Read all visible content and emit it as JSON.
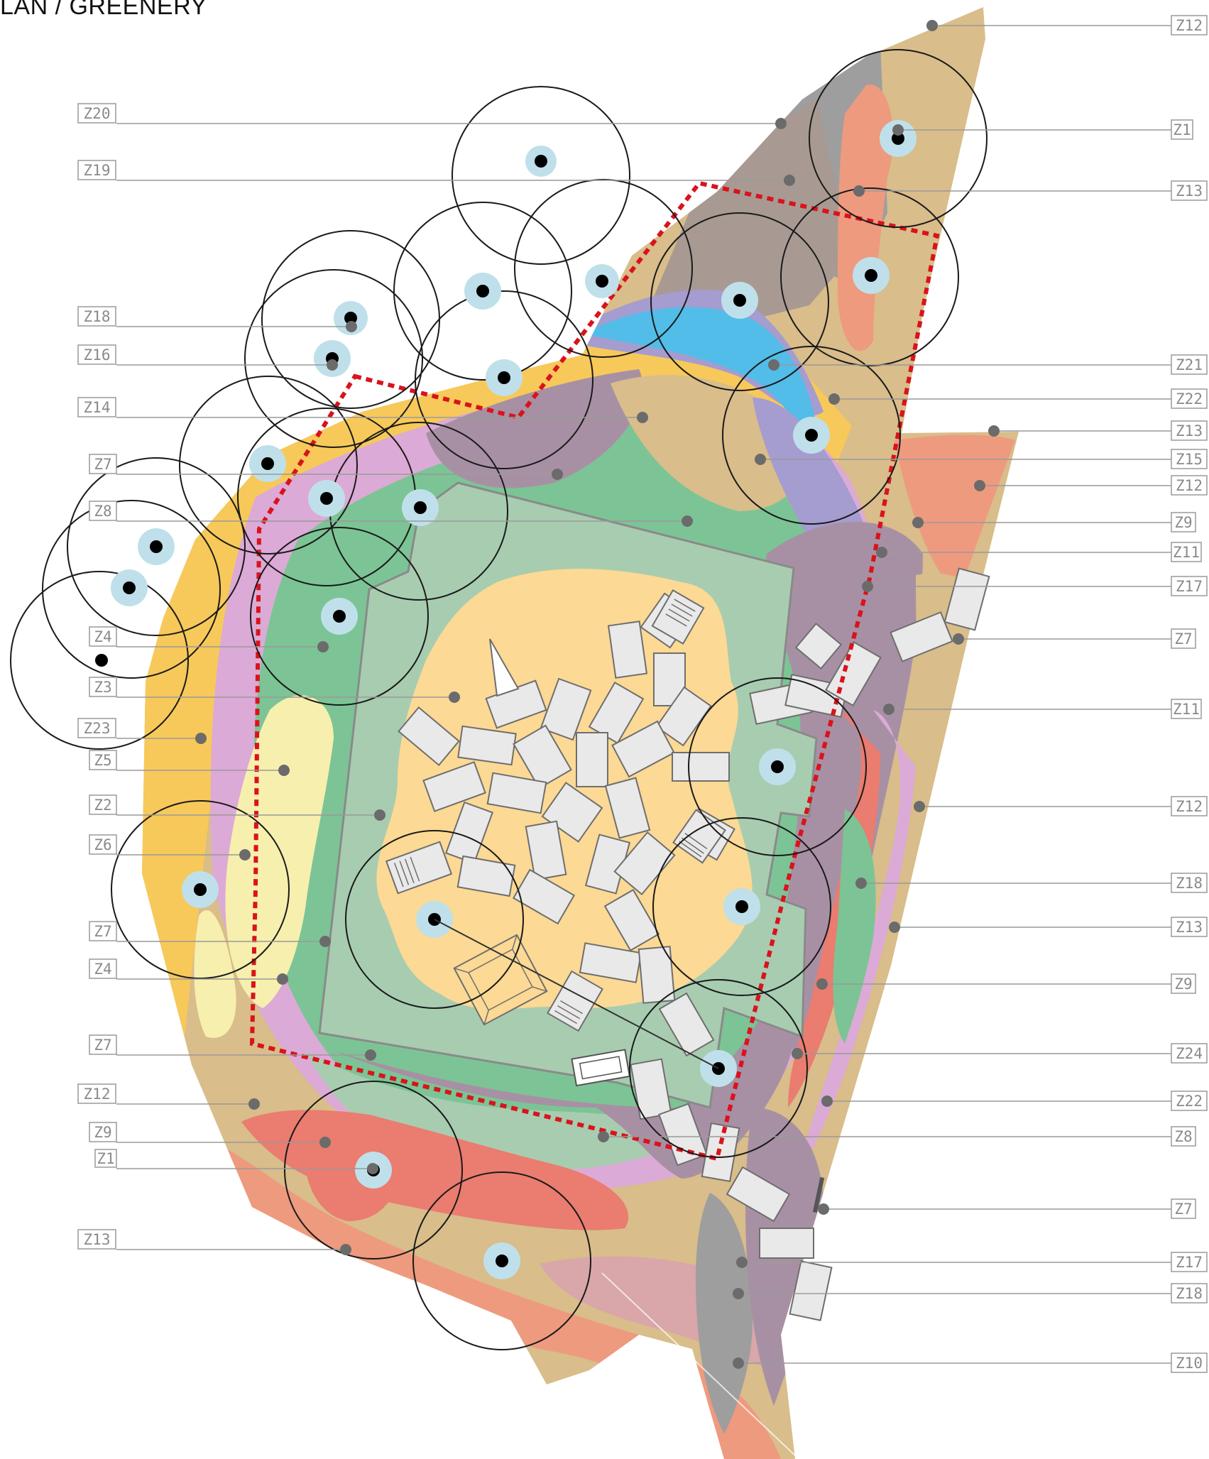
{
  "title": "LAN / GREENERY",
  "colors": {
    "yellow": "#f7c95a",
    "pale_yellow": "#f7efae",
    "green": "#7cc495",
    "plaza_green": "#a8ccb0",
    "sand": "#fcd994",
    "mauve": "#a890a4",
    "pink": "#dcaad6",
    "salmon": "#ee9a7e",
    "red": "#ea7c70",
    "tan": "#d9bd8a",
    "grey": "#9e9e9e",
    "taupe": "#a89a93",
    "blue": "#52bde8",
    "lavender": "#a59cd0",
    "dusty_rose": "#d9a6aa",
    "boundary": "#d9131c",
    "tree_halo": "#bfe0ea"
  },
  "left_labels": [
    "Z20",
    "Z19",
    "Z18",
    "Z16",
    "Z14",
    "Z7",
    "Z8",
    "Z4",
    "Z3",
    "Z23",
    "Z5",
    "Z2",
    "Z6",
    "Z7",
    "Z4",
    "Z7",
    "Z12",
    "Z9",
    "Z1",
    "Z13"
  ],
  "right_labels": [
    "Z12",
    "Z1",
    "Z13",
    "Z21",
    "Z22",
    "Z13",
    "Z15",
    "Z12",
    "Z9",
    "Z11",
    "Z17",
    "Z7",
    "Z11",
    "Z12",
    "Z18",
    "Z13",
    "Z9",
    "Z24",
    "Z22",
    "Z8",
    "Z7",
    "Z17",
    "Z18",
    "Z10"
  ]
}
